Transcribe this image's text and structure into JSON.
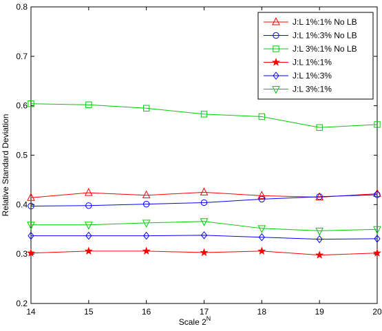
{
  "chart_data": {
    "type": "line",
    "title": "",
    "xlabel": "Scale 2",
    "xlabel_sup": "N",
    "ylabel": "Relative Standard Deviation",
    "x": [
      14,
      15,
      16,
      17,
      18,
      19,
      20
    ],
    "xlim": [
      14,
      20
    ],
    "ylim": [
      0.2,
      0.8
    ],
    "xticks": [
      "14",
      "15",
      "16",
      "17",
      "18",
      "19",
      "20"
    ],
    "yticks": [
      "0.2",
      "0.3",
      "0.4",
      "0.5",
      "0.6",
      "0.7",
      "0.8"
    ],
    "grid": false,
    "legend_position": "top-right",
    "series": [
      {
        "name": "J:L 1%:1% No LB",
        "color": "#ff0000",
        "marker": "triangle-up",
        "values": [
          0.414,
          0.424,
          0.419,
          0.425,
          0.418,
          0.415,
          0.422
        ]
      },
      {
        "name": "J:L 1%:3% No LB",
        "color": "#0000ff",
        "marker": "circle",
        "values": [
          0.397,
          0.398,
          0.401,
          0.404,
          0.411,
          0.416,
          0.42
        ]
      },
      {
        "name": "J:L 3%:1% No LB",
        "color": "#00cc00",
        "marker": "square",
        "values": [
          0.604,
          0.602,
          0.595,
          0.583,
          0.578,
          0.556,
          0.562
        ]
      },
      {
        "name": "J:L 1%:1%",
        "color": "#ff0000",
        "marker": "star",
        "values": [
          0.302,
          0.306,
          0.306,
          0.303,
          0.306,
          0.298,
          0.302
        ]
      },
      {
        "name": "J:L 1%:3%",
        "color": "#0000ff",
        "marker": "diamond",
        "values": [
          0.337,
          0.337,
          0.337,
          0.338,
          0.334,
          0.33,
          0.331
        ]
      },
      {
        "name": "J:L 3%:1%",
        "color": "#00cc00",
        "marker": "triangle-down",
        "values": [
          0.359,
          0.359,
          0.363,
          0.366,
          0.352,
          0.347,
          0.35
        ]
      }
    ]
  }
}
